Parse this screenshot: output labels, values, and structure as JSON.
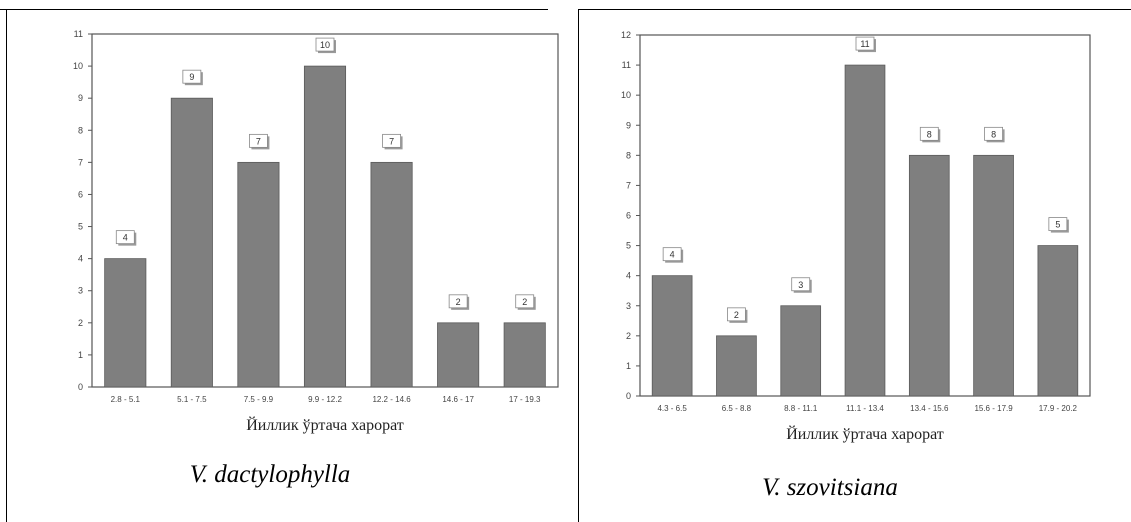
{
  "chart_data": [
    {
      "type": "bar",
      "categories": [
        "2.8 - 5.1",
        "5.1 - 7.5",
        "7.5 - 9.9",
        "9.9 - 12.2",
        "12.2 - 14.6",
        "14.6 - 17",
        "17 - 19.3"
      ],
      "values": [
        4,
        9,
        7,
        10,
        7,
        2,
        2
      ],
      "value_labels": [
        "4",
        "9",
        "7",
        "10",
        "7",
        "2",
        "2"
      ],
      "yticks": [
        "0",
        "1",
        "2",
        "3",
        "4",
        "5",
        "6",
        "7",
        "8",
        "9",
        "10",
        "11"
      ],
      "ylim": [
        0,
        11
      ],
      "xlabel": "Йиллик ўртача харорат",
      "ylabel": "",
      "grid": false,
      "bar_color": "#7f7f7f"
    },
    {
      "type": "bar",
      "categories": [
        "4.3 - 6.5",
        "6.5 - 8.8",
        "8.8 - 11.1",
        "11.1 - 13.4",
        "13.4 - 15.6",
        "15.6 - 17.9",
        "17.9 - 20.2"
      ],
      "values": [
        4,
        2,
        3,
        11,
        8,
        8,
        5
      ],
      "value_labels": [
        "4",
        "2",
        "3",
        "11",
        "8",
        "8",
        "5"
      ],
      "yticks": [
        "0",
        "1",
        "2",
        "3",
        "4",
        "5",
        "6",
        "7",
        "8",
        "9",
        "10",
        "11",
        "12"
      ],
      "ylim": [
        0,
        12
      ],
      "xlabel": "Йиллик ўртача харорат",
      "ylabel": "",
      "grid": false,
      "bar_color": "#7f7f7f"
    }
  ],
  "captions": {
    "left": "V. dactylophylla",
    "right": "V. szovitsiana"
  }
}
